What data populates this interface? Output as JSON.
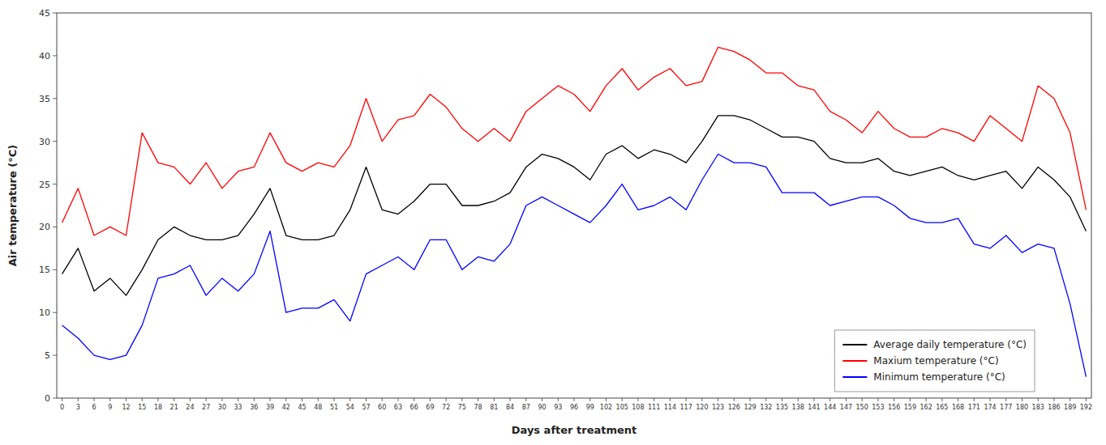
{
  "chart_data": {
    "type": "line",
    "xlabel": "Days after treatment",
    "ylabel": "Air temperature (°C)",
    "x": [
      0,
      3,
      6,
      9,
      12,
      15,
      18,
      21,
      24,
      27,
      30,
      33,
      36,
      39,
      42,
      45,
      48,
      51,
      54,
      57,
      60,
      63,
      66,
      69,
      72,
      75,
      78,
      81,
      84,
      87,
      90,
      93,
      96,
      99,
      102,
      105,
      108,
      111,
      114,
      117,
      120,
      123,
      126,
      129,
      132,
      135,
      138,
      141,
      144,
      147,
      150,
      153,
      156,
      159,
      162,
      165,
      168,
      171,
      174,
      177,
      180,
      183,
      186,
      189,
      192
    ],
    "series": [
      {
        "name": "Average daily temperature (°C)",
        "color": "black",
        "values": [
          14.5,
          17.5,
          12.5,
          14.0,
          12.0,
          15.0,
          18.5,
          20.0,
          19.0,
          18.5,
          18.5,
          19.0,
          21.5,
          24.5,
          19.0,
          18.5,
          18.5,
          19.0,
          22.0,
          27.0,
          22.0,
          21.5,
          23.0,
          25.0,
          25.0,
          22.5,
          22.5,
          23.0,
          24.0,
          27.0,
          28.5,
          28.0,
          27.0,
          25.5,
          28.5,
          29.5,
          28.0,
          29.0,
          28.5,
          27.5,
          30.0,
          33.0,
          33.0,
          32.5,
          31.5,
          30.5,
          30.5,
          30.0,
          28.0,
          27.5,
          27.5,
          28.0,
          26.5,
          26.0,
          26.5,
          27.0,
          26.0,
          25.5,
          26.0,
          26.5,
          24.5,
          27.0,
          25.5,
          23.5,
          19.5
        ]
      },
      {
        "name": "Maxium temperature (°C)",
        "color": "red",
        "values": [
          20.5,
          24.5,
          19.0,
          20.0,
          19.0,
          31.0,
          27.5,
          27.0,
          25.0,
          27.5,
          24.5,
          26.5,
          27.0,
          31.0,
          27.5,
          26.5,
          27.5,
          27.0,
          29.5,
          35.0,
          30.0,
          32.5,
          33.0,
          35.5,
          34.0,
          31.5,
          30.0,
          31.5,
          30.0,
          33.5,
          35.0,
          36.5,
          35.5,
          33.5,
          36.5,
          38.5,
          36.0,
          37.5,
          38.5,
          36.5,
          37.0,
          41.0,
          40.5,
          39.5,
          38.0,
          38.0,
          36.5,
          36.0,
          33.5,
          32.5,
          31.0,
          33.5,
          31.5,
          30.5,
          30.5,
          31.5,
          31.0,
          30.0,
          33.0,
          31.5,
          30.0,
          36.5,
          35.0,
          31.0,
          22.0
        ]
      },
      {
        "name": "Minimum temperature (°C)",
        "color": "blue",
        "values": [
          8.5,
          7.0,
          5.0,
          4.5,
          5.0,
          8.5,
          14.0,
          14.5,
          15.5,
          12.0,
          14.0,
          12.5,
          14.5,
          19.5,
          10.0,
          10.5,
          10.5,
          11.5,
          9.0,
          14.5,
          15.5,
          16.5,
          15.0,
          18.5,
          18.5,
          15.0,
          16.5,
          16.0,
          18.0,
          22.5,
          23.5,
          22.5,
          21.5,
          20.5,
          22.5,
          25.0,
          22.0,
          22.5,
          23.5,
          22.0,
          25.5,
          28.5,
          27.5,
          27.5,
          27.0,
          24.0,
          24.0,
          24.0,
          22.5,
          23.0,
          23.5,
          23.5,
          22.5,
          21.0,
          20.5,
          20.5,
          21.0,
          18.0,
          17.5,
          19.0,
          17.0,
          18.0,
          17.5,
          11.0,
          2.5
        ]
      }
    ],
    "xlim": [
      -1,
      193
    ],
    "xticks": [
      0,
      3,
      6,
      9,
      12,
      15,
      18,
      21,
      24,
      27,
      30,
      33,
      36,
      39,
      42,
      45,
      48,
      51,
      54,
      57,
      60,
      63,
      66,
      69,
      72,
      75,
      78,
      81,
      84,
      87,
      90,
      93,
      96,
      99,
      102,
      105,
      108,
      111,
      114,
      117,
      120,
      123,
      126,
      129,
      132,
      135,
      138,
      141,
      144,
      147,
      150,
      153,
      156,
      159,
      162,
      165,
      168,
      171,
      174,
      177,
      180,
      183,
      186,
      189,
      192
    ],
    "ylim": [
      0,
      45
    ],
    "yticks": [
      0,
      5,
      10,
      15,
      20,
      25,
      30,
      35,
      40,
      45
    ],
    "grid": false,
    "legend": "lower right"
  }
}
